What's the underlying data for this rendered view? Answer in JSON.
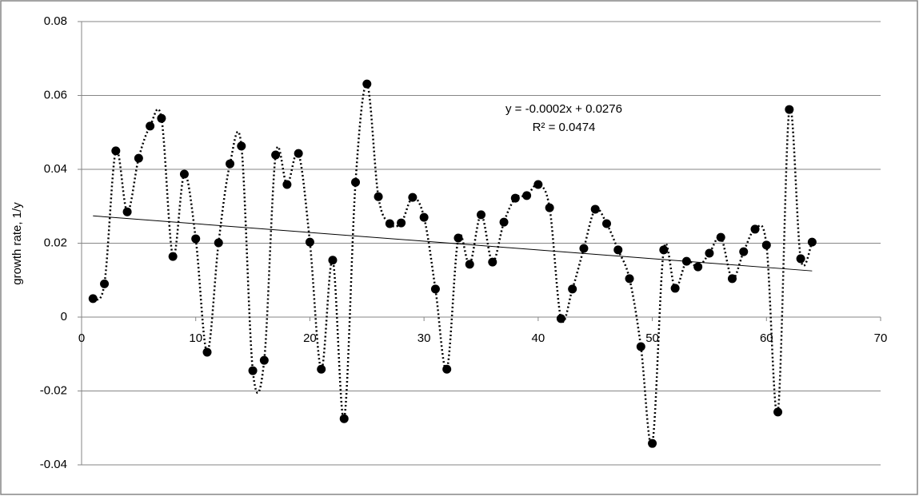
{
  "chart_data": {
    "type": "scatter",
    "y_label": "growth rate, 1/y",
    "x": [
      1,
      2,
      3,
      4,
      5,
      6,
      7,
      8,
      9,
      10,
      11,
      12,
      13,
      14,
      15,
      16,
      17,
      18,
      19,
      20,
      21,
      22,
      23,
      24,
      25,
      26,
      27,
      28,
      29,
      30,
      31,
      32,
      33,
      34,
      35,
      36,
      37,
      38,
      39,
      40,
      41,
      42,
      43,
      44,
      45,
      46,
      47,
      48,
      49,
      50,
      51,
      52,
      53,
      54,
      55,
      56,
      57,
      58,
      59,
      60,
      61,
      62,
      63,
      64
    ],
    "series": [
      {
        "color": "#000000",
        "values": [
          0.005,
          0.009,
          0.045,
          0.0285,
          0.043,
          0.0517,
          0.0538,
          0.0164,
          0.0387,
          0.0212,
          -0.0095,
          0.0201,
          0.0415,
          0.0463,
          -0.0145,
          -0.0117,
          0.0439,
          0.0359,
          0.0443,
          0.0203,
          -0.0141,
          0.0154,
          -0.0275,
          0.0365,
          0.0631,
          0.0326,
          0.0253,
          0.0255,
          0.0324,
          0.027,
          0.0076,
          -0.0141,
          0.0214,
          0.0143,
          0.0277,
          0.0149,
          0.0257,
          0.0322,
          0.0329,
          0.0359,
          0.0296,
          -0.0004,
          0.0076,
          0.0186,
          0.0292,
          0.0253,
          0.0182,
          0.0104,
          -0.008,
          -0.0342,
          0.0182,
          0.0078,
          0.0151,
          0.0136,
          0.0173,
          0.0216,
          0.0104,
          0.0177,
          0.0238,
          0.0195,
          -0.0257,
          0.0562,
          0.0158,
          0.0203
        ]
      }
    ],
    "trendline": {
      "x": [
        1,
        64
      ],
      "values": [
        0.0274,
        0.0125
      ],
      "equation": "y = -0.0002x + 0.0276",
      "r_squared": "R² = 0.0474"
    },
    "xlim": [
      0,
      70
    ],
    "xticks": [
      0,
      10,
      20,
      30,
      40,
      50,
      60,
      70
    ],
    "ylim": [
      -0.04,
      0.08
    ],
    "yticks": [
      -0.04,
      -0.02,
      0,
      0.02,
      0.04,
      0.06,
      0.08
    ],
    "grid": true
  }
}
